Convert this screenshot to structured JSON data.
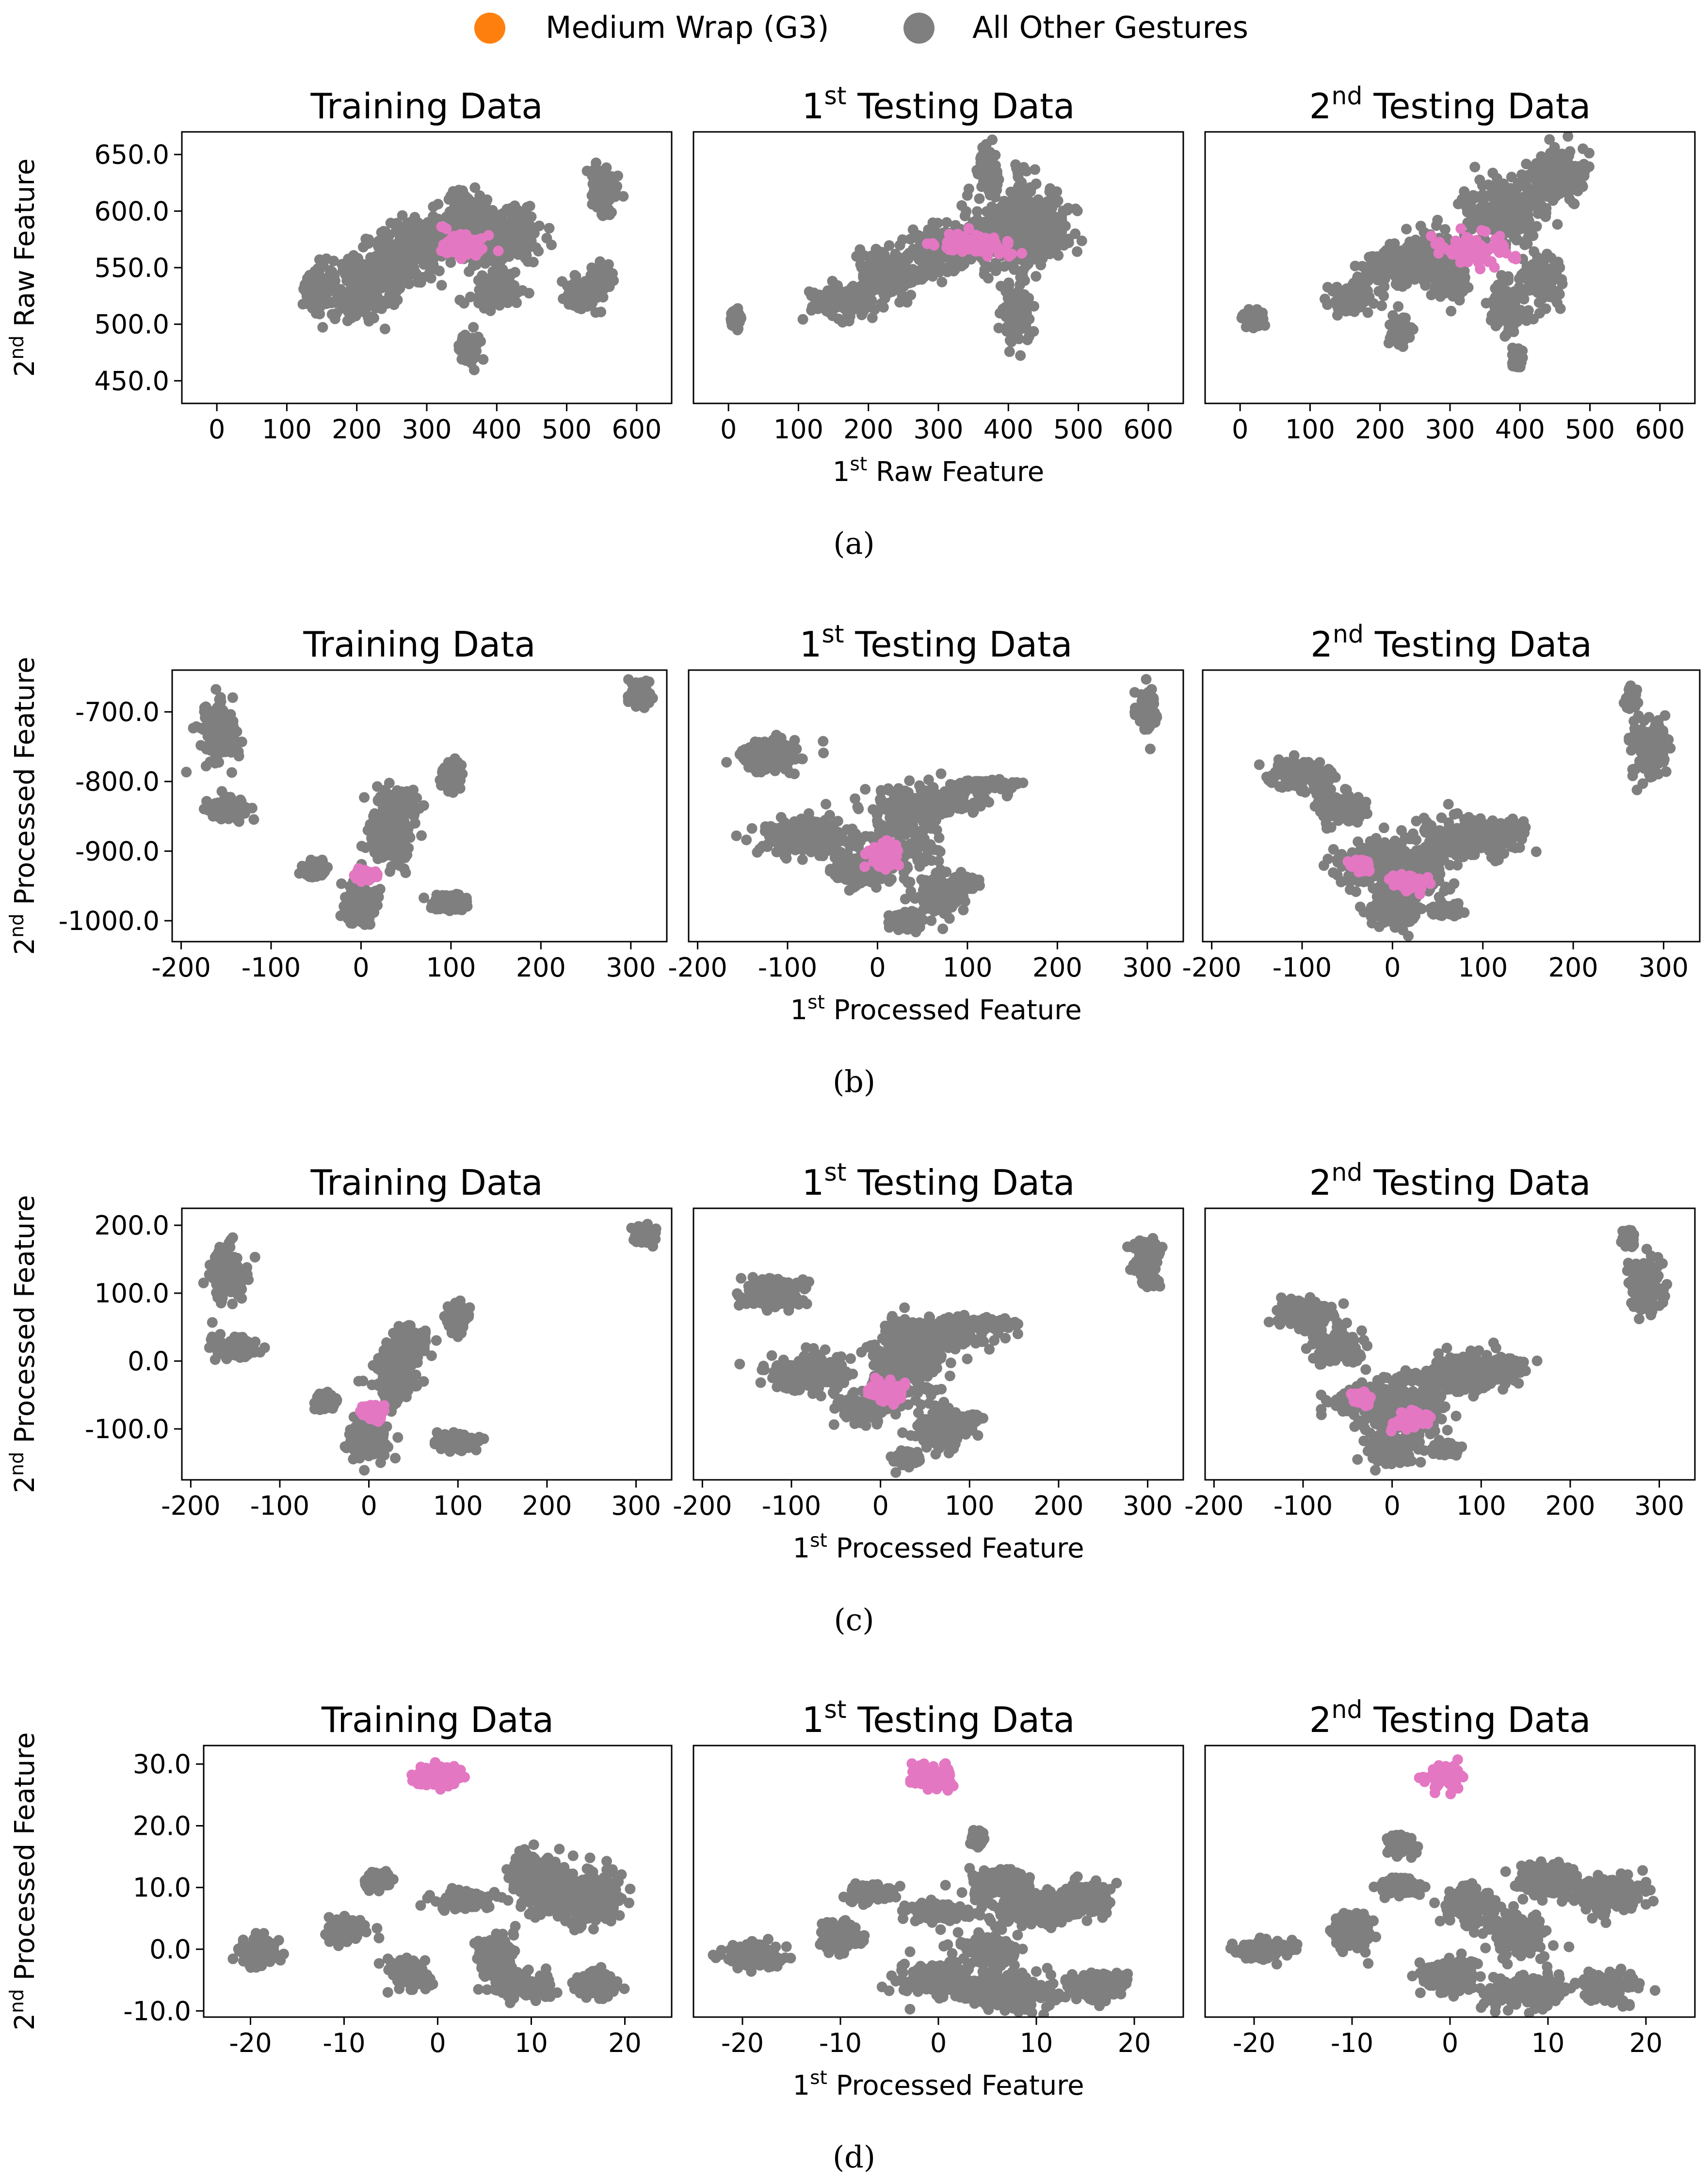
{
  "legend": {
    "highlight_label": "Medium Wrap (G3)",
    "other_label": "All Other Gestures",
    "highlight_marker_color": "#ff7f0e",
    "other_marker_color": "#7f7f7f"
  },
  "colors": {
    "highlight_points": "#e377c2",
    "other_points": "#7f7f7f"
  },
  "panel_titles": {
    "training": "Training Data",
    "testing1_base": "Testing Data",
    "testing1_sup": "st",
    "testing1_num": "1",
    "testing2_base": "Testing Data",
    "testing2_sup": "nd",
    "testing2_num": "2"
  },
  "chart_data": [
    {
      "type": "scatter",
      "caption": "(a)",
      "xlabel": {
        "num": "1",
        "sup": "st",
        "text": "Raw Feature"
      },
      "ylabel": {
        "num": "2",
        "sup": "nd",
        "text": "Raw Feature"
      },
      "xlim": [
        -50,
        650
      ],
      "ylim": [
        430,
        670
      ],
      "xticks": [
        0,
        100,
        200,
        300,
        400,
        500,
        600
      ],
      "xtick_labels": [
        "0",
        "100",
        "200",
        "300",
        "400",
        "500",
        "600"
      ],
      "yticks": [
        650,
        600,
        550,
        500,
        450
      ],
      "ytick_labels": [
        "650.0",
        "600.0",
        "550.0",
        "500.0",
        "450.0"
      ],
      "panels": [
        {
          "name": "training",
          "other_clusters": [
            [
              140,
              530,
              10,
              12
            ],
            [
              200,
              530,
              40,
              20
            ],
            [
              260,
              560,
              40,
              20
            ],
            [
              300,
              575,
              30,
              15
            ],
            [
              355,
              600,
              20,
              12
            ],
            [
              380,
              575,
              30,
              20
            ],
            [
              420,
              580,
              30,
              15
            ],
            [
              360,
              478,
              10,
              8
            ],
            [
              400,
              530,
              20,
              10
            ],
            [
              520,
              525,
              15,
              10
            ],
            [
              550,
              620,
              15,
              15
            ],
            [
              550,
              540,
              10,
              8
            ]
          ],
          "highlight_clusters": [
            [
              350,
              568,
              25,
              10
            ]
          ]
        },
        {
          "name": "testing1",
          "other_clusters": [
            [
              10,
              505,
              5,
              6
            ],
            [
              160,
              520,
              30,
              10
            ],
            [
              230,
              545,
              30,
              15
            ],
            [
              300,
              565,
              30,
              15
            ],
            [
              380,
              580,
              40,
              25
            ],
            [
              420,
              590,
              25,
              30
            ],
            [
              450,
              585,
              30,
              20
            ],
            [
              370,
              635,
              10,
              15
            ],
            [
              410,
              510,
              15,
              20
            ]
          ],
          "highlight_clusters": [
            [
              350,
              570,
              40,
              8
            ]
          ]
        },
        {
          "name": "testing2",
          "other_clusters": [
            [
              20,
              505,
              10,
              5
            ],
            [
              160,
              525,
              20,
              10
            ],
            [
              220,
              550,
              30,
              12
            ],
            [
              270,
              560,
              30,
              15
            ],
            [
              300,
              540,
              15,
              12
            ],
            [
              380,
              600,
              40,
              20
            ],
            [
              450,
              630,
              30,
              20
            ],
            [
              230,
              495,
              10,
              8
            ],
            [
              380,
              515,
              15,
              15
            ],
            [
              395,
              470,
              5,
              5
            ],
            [
              430,
              540,
              20,
              15
            ]
          ],
          "highlight_clusters": [
            [
              340,
              565,
              40,
              12
            ]
          ]
        }
      ]
    },
    {
      "type": "scatter",
      "caption": "(b)",
      "xlabel": {
        "num": "1",
        "sup": "st",
        "text": "Processed Feature"
      },
      "ylabel": {
        "num": "2",
        "sup": "nd",
        "text": "Processed Feature"
      },
      "xlim": [
        -210,
        340
      ],
      "ylim": [
        -1030,
        -640
      ],
      "xticks": [
        -200,
        -100,
        0,
        100,
        200,
        300
      ],
      "xtick_labels": [
        "-200",
        "-100",
        "0",
        "100",
        "200",
        "300"
      ],
      "yticks": [
        -700,
        -800,
        -900,
        -1000
      ],
      "ytick_labels": [
        "-700.0",
        "-800.0",
        "-900.0",
        "-1000.0"
      ],
      "panels": [
        {
          "name": "training",
          "other_clusters": [
            [
              -160,
              -730,
              15,
              30
            ],
            [
              -150,
              -840,
              15,
              10
            ],
            [
              -50,
              -925,
              8,
              8
            ],
            [
              0,
              -975,
              15,
              20
            ],
            [
              30,
              -880,
              20,
              30
            ],
            [
              40,
              -835,
              15,
              15
            ],
            [
              100,
              -795,
              8,
              15
            ],
            [
              100,
              -975,
              15,
              8
            ],
            [
              310,
              -675,
              8,
              12
            ]
          ],
          "highlight_clusters": [
            [
              5,
              -935,
              10,
              6
            ]
          ]
        },
        {
          "name": "testing1",
          "other_clusters": [
            [
              -120,
              -760,
              25,
              15
            ],
            [
              -80,
              -880,
              35,
              20
            ],
            [
              -20,
              -930,
              20,
              15
            ],
            [
              30,
              -870,
              30,
              40
            ],
            [
              60,
              -830,
              40,
              15
            ],
            [
              120,
              -805,
              20,
              5
            ],
            [
              70,
              -960,
              20,
              20
            ],
            [
              100,
              -945,
              10,
              5
            ],
            [
              30,
              -1000,
              10,
              8
            ],
            [
              300,
              -700,
              10,
              20
            ]
          ],
          "highlight_clusters": [
            [
              10,
              -908,
              15,
              12
            ]
          ]
        },
        {
          "name": "testing2",
          "other_clusters": [
            [
              -100,
              -790,
              25,
              15
            ],
            [
              -60,
              -840,
              20,
              15
            ],
            [
              -20,
              -920,
              30,
              20
            ],
            [
              20,
              -930,
              30,
              30
            ],
            [
              80,
              -880,
              40,
              20
            ],
            [
              130,
              -870,
              10,
              10
            ],
            [
              0,
              -985,
              20,
              15
            ],
            [
              60,
              -985,
              10,
              5
            ],
            [
              285,
              -750,
              15,
              30
            ],
            [
              265,
              -680,
              5,
              10
            ]
          ],
          "highlight_clusters": [
            [
              -35,
              -920,
              8,
              6
            ],
            [
              20,
              -945,
              15,
              10
            ]
          ]
        }
      ]
    },
    {
      "type": "scatter",
      "caption": "(c)",
      "xlabel": {
        "num": "1",
        "sup": "st",
        "text": "Processed Feature"
      },
      "ylabel": {
        "num": "2",
        "sup": "nd",
        "text": "Processed Feature"
      },
      "xlim": [
        -210,
        340
      ],
      "ylim": [
        -175,
        225
      ],
      "xticks": [
        -200,
        -100,
        0,
        100,
        200,
        300
      ],
      "xtick_labels": [
        "-200",
        "-100",
        "0",
        "100",
        "200",
        "300"
      ],
      "yticks": [
        200,
        100,
        0,
        -100
      ],
      "ytick_labels": [
        "200.0",
        "100.0",
        "0.0",
        "-100.0"
      ],
      "panels": [
        {
          "name": "training",
          "other_clusters": [
            [
              -160,
              130,
              15,
              30
            ],
            [
              -150,
              20,
              15,
              10
            ],
            [
              -50,
              -60,
              8,
              8
            ],
            [
              0,
              -115,
              15,
              20
            ],
            [
              30,
              -20,
              20,
              35
            ],
            [
              45,
              30,
              15,
              15
            ],
            [
              100,
              65,
              8,
              15
            ],
            [
              100,
              -120,
              15,
              8
            ],
            [
              310,
              185,
              8,
              10
            ]
          ],
          "highlight_clusters": [
            [
              5,
              -75,
              10,
              8
            ]
          ]
        },
        {
          "name": "testing1",
          "other_clusters": [
            [
              -120,
              100,
              25,
              15
            ],
            [
              -80,
              -20,
              35,
              20
            ],
            [
              -20,
              -70,
              20,
              15
            ],
            [
              30,
              -10,
              30,
              40
            ],
            [
              60,
              40,
              40,
              15
            ],
            [
              120,
              55,
              20,
              5
            ],
            [
              70,
              -100,
              20,
              20
            ],
            [
              100,
              -85,
              10,
              5
            ],
            [
              30,
              -145,
              10,
              8
            ],
            [
              300,
              150,
              10,
              25
            ]
          ],
          "highlight_clusters": [
            [
              10,
              -45,
              15,
              12
            ]
          ]
        },
        {
          "name": "testing2",
          "other_clusters": [
            [
              -100,
              70,
              25,
              15
            ],
            [
              -60,
              20,
              20,
              15
            ],
            [
              -20,
              -60,
              30,
              20
            ],
            [
              20,
              -70,
              30,
              30
            ],
            [
              80,
              -20,
              40,
              20
            ],
            [
              130,
              -10,
              10,
              10
            ],
            [
              0,
              -130,
              20,
              15
            ],
            [
              60,
              -130,
              10,
              5
            ],
            [
              285,
              110,
              15,
              30
            ],
            [
              265,
              180,
              5,
              10
            ]
          ],
          "highlight_clusters": [
            [
              -35,
              -55,
              8,
              6
            ],
            [
              20,
              -85,
              15,
              10
            ]
          ]
        }
      ]
    },
    {
      "type": "scatter",
      "caption": "(d)",
      "xlabel": {
        "num": "1",
        "sup": "st",
        "text": "Processed Feature"
      },
      "ylabel": {
        "num": "2",
        "sup": "nd",
        "text": "Processed Feature"
      },
      "xlim": [
        -25,
        25
      ],
      "ylim": [
        -11,
        33
      ],
      "xticks": [
        -20,
        -10,
        0,
        10,
        20
      ],
      "xtick_labels": [
        "-20",
        "-10",
        "0",
        "10",
        "20"
      ],
      "yticks": [
        30,
        20,
        10,
        0,
        -10
      ],
      "ytick_labels": [
        "30.0",
        "20.0",
        "10.0",
        "0.0",
        "-10.0"
      ],
      "panels": [
        {
          "name": "training",
          "other_clusters": [
            [
              -19,
              -0.5,
              1.5,
              1.5
            ],
            [
              -10,
              3,
              1.5,
              1.5
            ],
            [
              -6.5,
              11,
              1,
              1
            ],
            [
              -3,
              -4,
              1.5,
              1.5
            ],
            [
              3,
              8,
              2,
              1
            ],
            [
              6,
              -1,
              1.5,
              2.5
            ],
            [
              9,
              -6,
              2.5,
              1.5
            ],
            [
              10,
              12,
              1.5,
              3
            ],
            [
              13,
              9,
              2.5,
              3
            ],
            [
              17,
              9,
              2,
              3
            ],
            [
              17,
              -6,
              1.5,
              1.5
            ]
          ],
          "highlight_clusters": [
            [
              -0.5,
              28,
              2,
              1.5
            ]
          ]
        },
        {
          "name": "testing1",
          "other_clusters": [
            [
              -19,
              -1,
              2,
              1.5
            ],
            [
              -10,
              2,
              1.5,
              1.5
            ],
            [
              -7,
              9,
              1.5,
              1
            ],
            [
              0,
              6,
              2,
              1
            ],
            [
              6,
              11,
              2,
              1.5
            ],
            [
              9,
              7,
              3,
              2
            ],
            [
              15,
              8,
              2,
              2
            ],
            [
              5,
              0,
              2,
              2
            ],
            [
              0,
              -5,
              3,
              2
            ],
            [
              8,
              -7,
              3,
              2
            ],
            [
              16,
              -6,
              2,
              1.5
            ],
            [
              4,
              18,
              0.5,
              1
            ]
          ],
          "highlight_clusters": [
            [
              -0.5,
              28,
              1.5,
              1.5
            ]
          ]
        },
        {
          "name": "testing2",
          "other_clusters": [
            [
              -19,
              0,
              2,
              1
            ],
            [
              -10,
              3,
              1.5,
              2
            ],
            [
              -5,
              10,
              1.5,
              1
            ],
            [
              2,
              7,
              2,
              2
            ],
            [
              7,
              2,
              2,
              2.5
            ],
            [
              10,
              11,
              2,
              2
            ],
            [
              16,
              9,
              2.5,
              2
            ],
            [
              0,
              -4,
              2,
              2
            ],
            [
              8,
              -7,
              3,
              2
            ],
            [
              16,
              -6,
              2,
              1.5
            ],
            [
              -5,
              17,
              1,
              1
            ]
          ],
          "highlight_clusters": [
            [
              -0.5,
              28,
              1.5,
              1.5
            ]
          ]
        }
      ]
    }
  ]
}
